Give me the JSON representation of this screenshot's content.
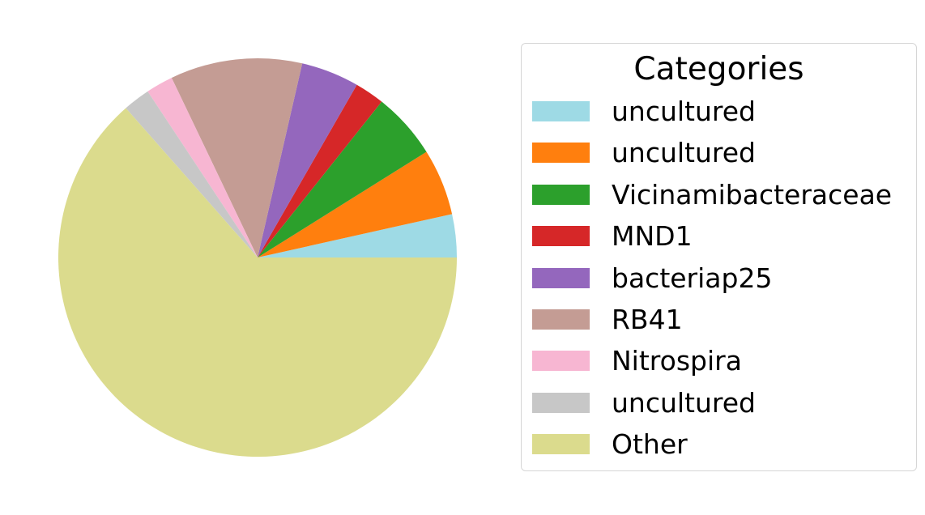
{
  "chart_data": {
    "type": "pie",
    "title": "",
    "legend_title": "Categories",
    "legend_position": "right",
    "start_angle_deg": 0,
    "direction": "counterclockwise",
    "slices": [
      {
        "label": "uncultured",
        "value": 3.5,
        "color": "#9edae5"
      },
      {
        "label": "uncultured",
        "value": 5.4,
        "color": "#ff7f0e"
      },
      {
        "label": "Vicinamibacteraceae",
        "value": 5.4,
        "color": "#2ca02c"
      },
      {
        "label": "MND1",
        "value": 2.4,
        "color": "#d62728"
      },
      {
        "label": "bacteriap25",
        "value": 4.7,
        "color": "#9467bd"
      },
      {
        "label": "RB41",
        "value": 10.7,
        "color": "#c49c94"
      },
      {
        "label": "Nitrospira",
        "value": 2.2,
        "color": "#f7b6d2"
      },
      {
        "label": "uncultured",
        "value": 2.2,
        "color": "#c7c7c7"
      },
      {
        "label": "Other",
        "value": 63.5,
        "color": "#dbdb8d"
      }
    ]
  }
}
